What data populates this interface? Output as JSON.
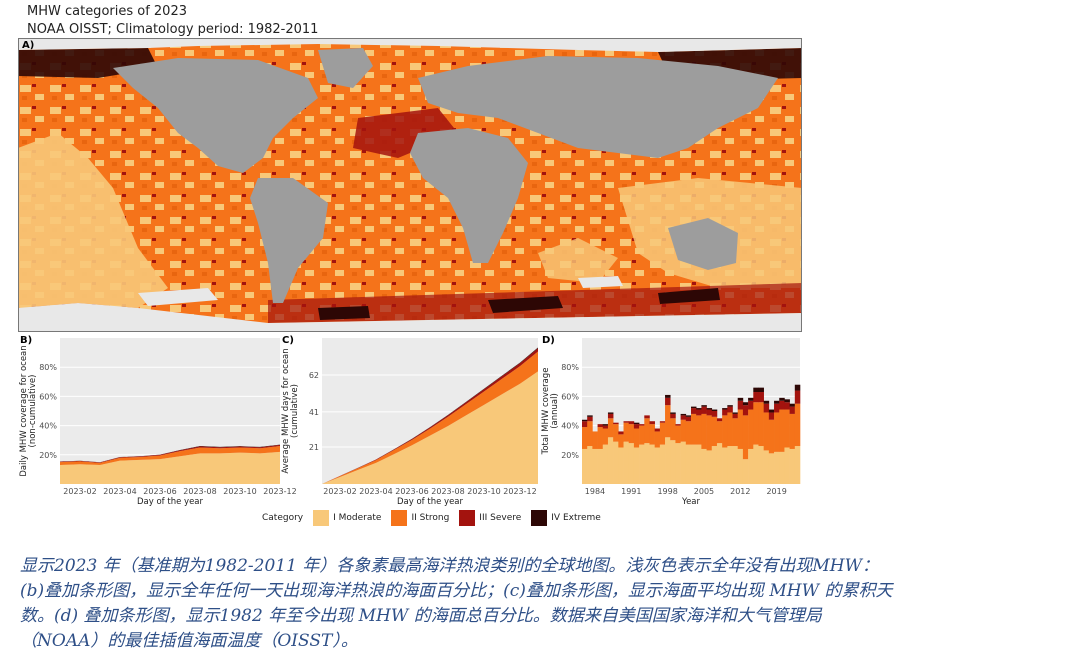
{
  "header": {
    "title": "MHW categories of 2023",
    "subtitle": "NOAA OISST; Climatology period: 1982-2011"
  },
  "colors": {
    "land": "#9d9d9d",
    "none": "#e8e8e8",
    "moderate": "#f8c879",
    "strong": "#f5731a",
    "severe": "#a3130e",
    "extreme": "#2d0705",
    "panel_bg": "#ebebeb"
  },
  "legend": {
    "title": "Category",
    "items": [
      {
        "label": "I Moderate",
        "color": "#f8c879"
      },
      {
        "label": "II Strong",
        "color": "#f5731a"
      },
      {
        "label": "III Severe",
        "color": "#a3130e"
      },
      {
        "label": "IV Extreme",
        "color": "#2d0705"
      }
    ]
  },
  "chart_data": [
    {
      "panel": "A)",
      "type": "heatmap",
      "description_visible": "global map of highest MHW category per pixel in 2023"
    },
    {
      "panel": "B)",
      "type": "area",
      "stacked": true,
      "xlabel": "Day of the year",
      "ylabel": "Daily MHW coverage for ocean (non-cumulative)",
      "x_ticks": [
        "2023-02",
        "2023-04",
        "2023-06",
        "2023-08",
        "2023-10",
        "2023-12"
      ],
      "y_ticks": [
        "20%",
        "40%",
        "60%",
        "80%"
      ],
      "ylim": [
        0,
        100
      ],
      "x": [
        "2023-01",
        "2023-02",
        "2023-03",
        "2023-04",
        "2023-05",
        "2023-06",
        "2023-07",
        "2023-08",
        "2023-09",
        "2023-10",
        "2023-11",
        "2023-12"
      ],
      "series": [
        {
          "name": "I Moderate",
          "values": [
            13,
            13.5,
            13,
            16,
            16.5,
            17,
            19,
            21,
            21,
            21.5,
            21,
            22
          ]
        },
        {
          "name": "II Strong",
          "values": [
            2,
            2,
            1.5,
            2,
            2,
            2.5,
            3.5,
            4,
            3.5,
            3.5,
            3.5,
            4
          ]
        },
        {
          "name": "III Severe",
          "values": [
            0.3,
            0.3,
            0.3,
            0.4,
            0.4,
            0.5,
            0.6,
            0.8,
            0.7,
            0.7,
            0.7,
            0.8
          ]
        },
        {
          "name": "IV Extreme",
          "values": [
            0.1,
            0.1,
            0.1,
            0.1,
            0.1,
            0.1,
            0.2,
            0.2,
            0.2,
            0.2,
            0.2,
            0.2
          ]
        }
      ]
    },
    {
      "panel": "C)",
      "type": "area",
      "stacked": true,
      "xlabel": "Day of the year",
      "ylabel": "Average MHW days for ocean (cumulative)",
      "x_ticks": [
        "2023-02",
        "2023-04",
        "2023-06",
        "2023-08",
        "2023-10",
        "2023-12"
      ],
      "y_ticks": [
        "21",
        "41",
        "62"
      ],
      "ylim": [
        0,
        83
      ],
      "x": [
        "2023-01",
        "2023-02",
        "2023-03",
        "2023-04",
        "2023-05",
        "2023-06",
        "2023-07",
        "2023-08",
        "2023-09",
        "2023-10",
        "2023-11",
        "2023-12",
        "2024-01"
      ],
      "series": [
        {
          "name": "I Moderate",
          "values": [
            0,
            4,
            8,
            12,
            17,
            22,
            27.5,
            33,
            39,
            45,
            51,
            57,
            64
          ]
        },
        {
          "name": "II Strong",
          "values": [
            0,
            0.5,
            1,
            1.6,
            2.3,
            3.1,
            4,
            5.2,
            6.4,
            7.6,
            8.8,
            10,
            11.3
          ]
        },
        {
          "name": "III Severe",
          "values": [
            0,
            0.1,
            0.2,
            0.3,
            0.4,
            0.5,
            0.7,
            0.9,
            1.1,
            1.3,
            1.5,
            1.7,
            1.9
          ]
        },
        {
          "name": "IV Extreme",
          "values": [
            0,
            0.02,
            0.04,
            0.06,
            0.08,
            0.1,
            0.13,
            0.17,
            0.21,
            0.25,
            0.29,
            0.33,
            0.37
          ]
        }
      ]
    },
    {
      "panel": "D)",
      "type": "bar",
      "stacked": true,
      "xlabel": "Year",
      "ylabel": "Total MHW coverage (annual)",
      "x_ticks": [
        "1984",
        "1991",
        "1998",
        "2005",
        "2012",
        "2019"
      ],
      "y_ticks": [
        "20%",
        "40%",
        "60%",
        "80%"
      ],
      "ylim": [
        0,
        100
      ],
      "categories": [
        "1982",
        "1983",
        "1984",
        "1985",
        "1986",
        "1987",
        "1988",
        "1989",
        "1990",
        "1991",
        "1992",
        "1993",
        "1994",
        "1995",
        "1996",
        "1997",
        "1998",
        "1999",
        "2000",
        "2001",
        "2002",
        "2003",
        "2004",
        "2005",
        "2006",
        "2007",
        "2008",
        "2009",
        "2010",
        "2011",
        "2012",
        "2013",
        "2014",
        "2015",
        "2016",
        "2017",
        "2018",
        "2019",
        "2020",
        "2021",
        "2022",
        "2023"
      ],
      "series": [
        {
          "name": "I Moderate",
          "values": [
            24,
            26,
            24,
            24,
            27,
            32,
            29,
            25,
            29,
            28,
            25,
            27,
            28,
            27,
            25,
            27,
            32,
            30,
            28,
            29,
            27,
            27,
            27,
            24,
            23,
            26,
            28,
            25,
            26,
            26,
            24,
            17,
            24,
            27,
            26,
            23,
            21,
            22,
            22,
            25,
            24,
            26
          ]
        },
        {
          "name": "II Strong",
          "values": [
            15,
            17,
            12,
            15,
            11,
            13,
            12,
            9,
            13,
            13,
            13,
            13,
            17,
            14,
            11,
            15,
            22,
            15,
            12,
            15,
            16,
            21,
            20,
            24,
            24,
            20,
            15,
            22,
            23,
            19,
            27,
            30,
            27,
            29,
            30,
            26,
            23,
            27,
            29,
            26,
            24,
            29
          ]
        },
        {
          "name": "III Severe",
          "values": [
            4,
            3,
            0,
            2,
            2,
            3,
            1,
            2,
            1,
            2,
            3,
            1,
            2,
            2,
            2,
            1,
            5,
            3,
            1,
            3,
            3,
            4,
            4,
            5,
            4,
            4,
            2,
            4,
            4,
            3,
            6,
            7,
            6,
            7,
            7,
            6,
            5,
            6,
            6,
            5,
            5,
            9
          ]
        },
        {
          "name": "IV Extreme",
          "values": [
            1,
            1,
            0,
            0,
            1,
            1,
            0,
            0,
            0,
            0,
            1,
            0,
            0,
            0,
            0,
            0,
            2,
            1,
            0,
            1,
            1,
            1,
            1,
            1,
            1,
            1,
            0,
            1,
            1,
            1,
            2,
            2,
            2,
            3,
            3,
            2,
            2,
            2,
            2,
            2,
            2,
            4
          ]
        }
      ]
    }
  ],
  "caption": {
    "lines": [
      "显示2023 年（基准期为1982-2011 年）各象素最高海洋热浪类别的全球地图。浅灰色表示全年没有出现MHW：",
      "(b)叠加条形图，显示全年任何一天出现海洋热浪的海面百分比；(c)叠加条形图，显示海面平均出现 MHW 的累积天",
      "数。(d) 叠加条形图，显示1982 年至今出现 MHW 的海面总百分比。数据来自美国国家海洋和大气管理局",
      "（NOAA）的最佳插值海面温度（OISST）。"
    ]
  }
}
